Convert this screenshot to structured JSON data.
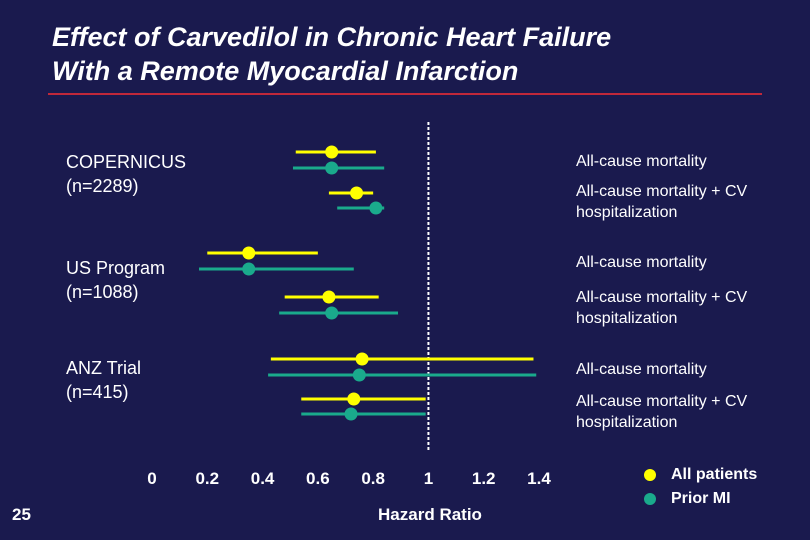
{
  "title_line1": "Effect of Carvedilol in Chronic Heart Failure",
  "title_line2": "With a Remote Myocardial Infarction",
  "slide_number": "25",
  "legend": {
    "all_patients": "All patients",
    "prior_mi": "Prior MI",
    "all_patients_color": "#ffff00",
    "prior_mi_color": "#1aaa8c"
  },
  "chart_data": {
    "type": "forest",
    "title": "Effect of Carvedilol in Chronic Heart Failure With a Remote Myocardial Infarction",
    "xlabel": "Hazard Ratio",
    "xlim": [
      0,
      1.4
    ],
    "reference_line": 1,
    "ticks": [
      "0",
      "0.2",
      "0.4",
      "0.6",
      "0.8",
      "1",
      "1.2",
      "1.4"
    ],
    "tick_values": [
      0,
      0.2,
      0.4,
      0.6,
      0.8,
      1,
      1.2,
      1.4
    ],
    "series": [
      {
        "name": "All patients",
        "color": "#ffff00"
      },
      {
        "name": "Prior MI",
        "color": "#1aaa8c"
      }
    ],
    "studies": [
      {
        "name": "COPERNICUS",
        "n": "(n=2289)",
        "outcomes": [
          {
            "label": "All-cause mortality",
            "all_patients": {
              "hr": 0.65,
              "low": 0.52,
              "high": 0.81
            },
            "prior_mi": {
              "hr": 0.65,
              "low": 0.51,
              "high": 0.84
            }
          },
          {
            "label": "All-cause mortality + CV hospitalization",
            "all_patients": {
              "hr": 0.74,
              "low": 0.64,
              "high": 0.8
            },
            "prior_mi": {
              "hr": 0.81,
              "low": 0.67,
              "high": 0.84
            }
          }
        ]
      },
      {
        "name": "US Program",
        "n": "(n=1088)",
        "outcomes": [
          {
            "label": "All-cause mortality",
            "all_patients": {
              "hr": 0.35,
              "low": 0.2,
              "high": 0.6
            },
            "prior_mi": {
              "hr": 0.35,
              "low": 0.17,
              "high": 0.73
            }
          },
          {
            "label": "All-cause mortality + CV hospitalization",
            "all_patients": {
              "hr": 0.64,
              "low": 0.48,
              "high": 0.82
            },
            "prior_mi": {
              "hr": 0.65,
              "low": 0.46,
              "high": 0.89
            }
          }
        ]
      },
      {
        "name": "ANZ Trial",
        "n": "(n=415)",
        "outcomes": [
          {
            "label": "All-cause mortality",
            "all_patients": {
              "hr": 0.76,
              "low": 0.43,
              "high": 1.38
            },
            "prior_mi": {
              "hr": 0.75,
              "low": 0.42,
              "high": 1.39
            }
          },
          {
            "label": "All-cause mortality + CV hospitalization",
            "all_patients": {
              "hr": 0.73,
              "low": 0.54,
              "high": 0.99
            },
            "prior_mi": {
              "hr": 0.72,
              "low": 0.54,
              "high": 0.99
            }
          }
        ]
      }
    ]
  }
}
